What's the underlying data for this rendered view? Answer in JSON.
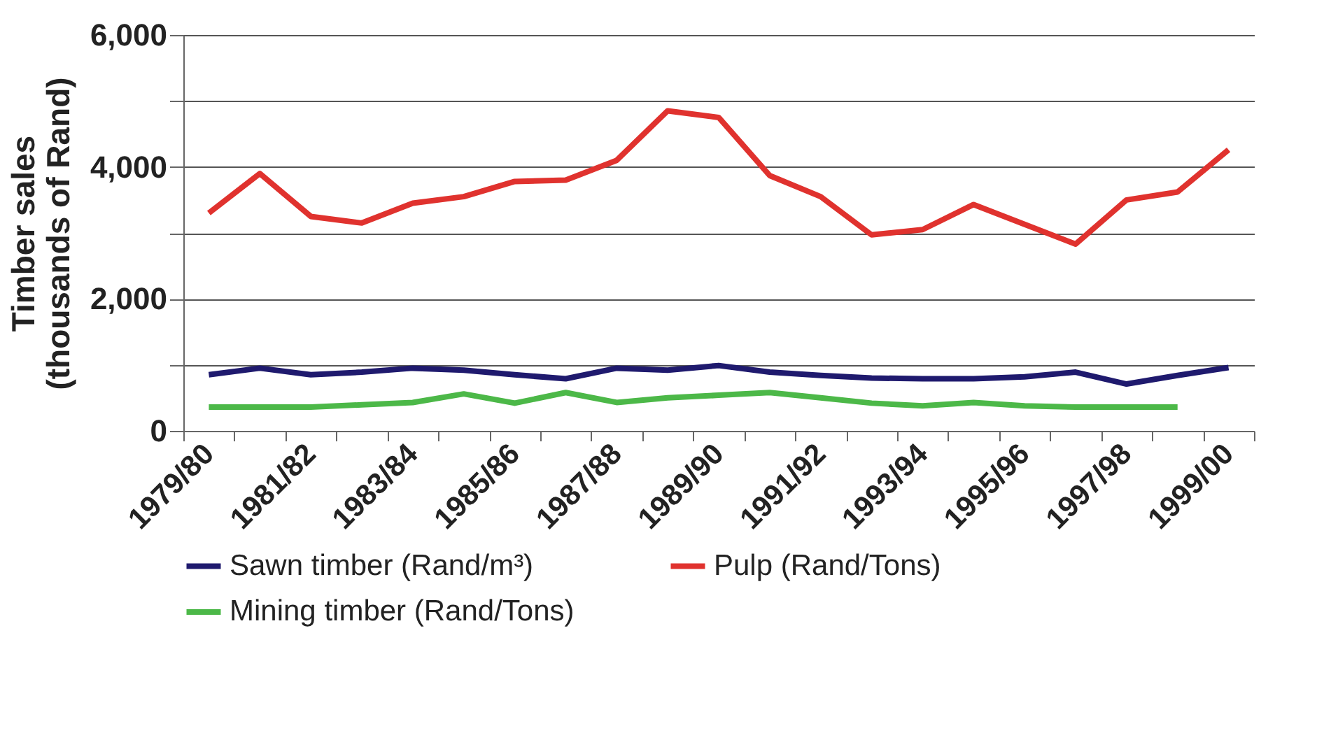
{
  "chart_data": {
    "type": "line",
    "ylabel": "Timber sales\n(thousands of Rand)",
    "categories": [
      "1979/80",
      null,
      "1981/82",
      null,
      "1983/84",
      null,
      "1985/86",
      null,
      "1987/88",
      null,
      "1989/90",
      null,
      "1991/92",
      null,
      "1993/94",
      null,
      "1995/96",
      null,
      "1997/98",
      null,
      "1999/00"
    ],
    "series": [
      {
        "name": "Sawn timber (Rand/m³)",
        "color": "#1f1a6e",
        "values": [
          850,
          950,
          850,
          890,
          950,
          920,
          850,
          790,
          950,
          920,
          990,
          890,
          840,
          800,
          790,
          790,
          820,
          890,
          710,
          840,
          960
        ]
      },
      {
        "name": "Pulp (Rand/Tons)",
        "color": "#e0322e",
        "values": [
          3300,
          3900,
          3250,
          3150,
          3450,
          3550,
          3780,
          3800,
          4100,
          4850,
          4750,
          3870,
          3550,
          2970,
          3050,
          3430,
          3130,
          2830,
          3500,
          3620,
          4260
        ]
      },
      {
        "name": "Mining timber (Rand/Tons)",
        "color": "#4cb848",
        "values": [
          360,
          360,
          360,
          395,
          430,
          560,
          420,
          580,
          430,
          500,
          540,
          580,
          500,
          420,
          380,
          430,
          380,
          360,
          360,
          360,
          null
        ]
      }
    ],
    "ylim": [
      0,
      6000
    ],
    "yticks": [
      {
        "value": 0,
        "label": "0"
      },
      {
        "value": 1000,
        "label": null
      },
      {
        "value": 2000,
        "label": "2,000"
      },
      {
        "value": 3000,
        "label": null
      },
      {
        "value": 4000,
        "label": "4,000"
      },
      {
        "value": 5000,
        "label": null
      },
      {
        "value": 6000,
        "label": "6,000"
      }
    ],
    "grid": "y",
    "legend": "bottom",
    "marker": "none",
    "line_style": "solid"
  }
}
